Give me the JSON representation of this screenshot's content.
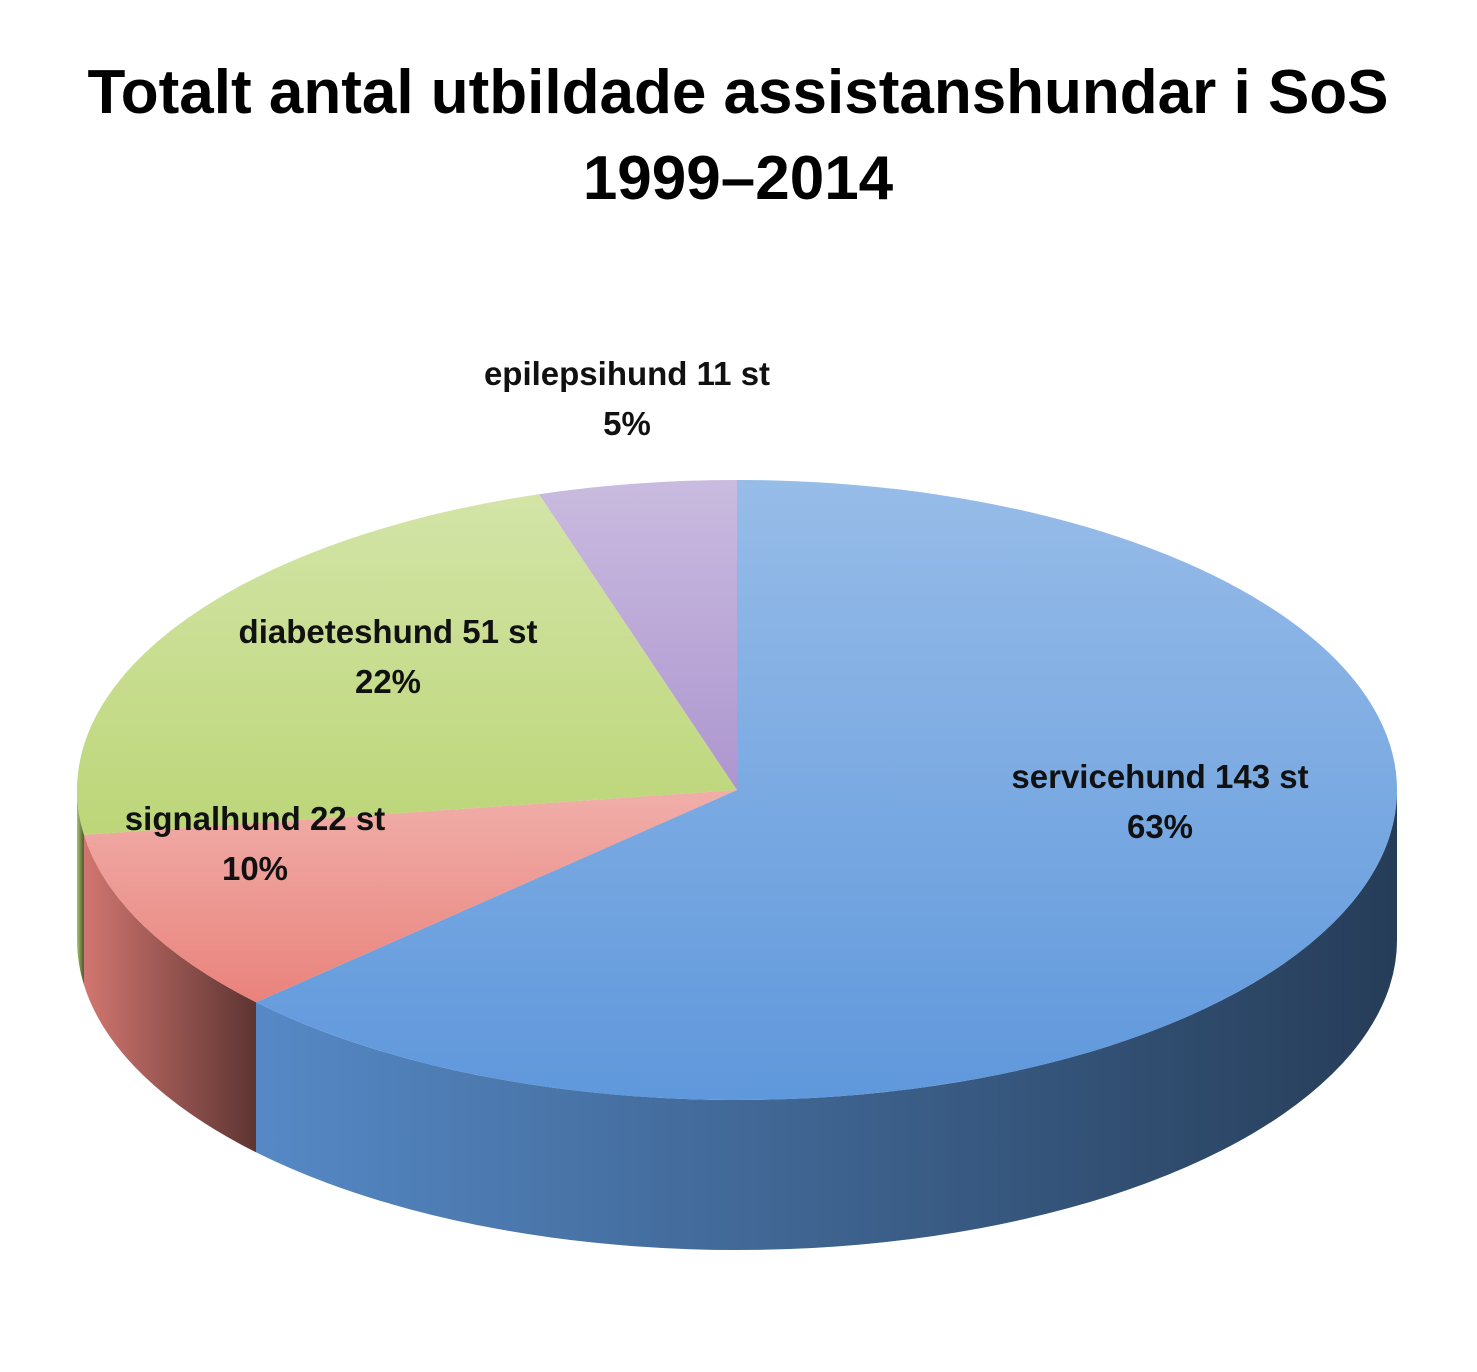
{
  "chart_data": {
    "type": "pie3d",
    "title": "Totalt antal utbildade assistanshundar i SoS 1999–2014",
    "categories": [
      "servicehund",
      "signalhund",
      "diabeteshund",
      "epilepsihund"
    ],
    "values": [
      143,
      22,
      51,
      11
    ],
    "value_labels": [
      "143 st",
      "22 st",
      "51 st",
      "11 st"
    ],
    "percents": [
      63,
      10,
      22,
      5
    ],
    "percent_labels": [
      "63%",
      "10%",
      "22%",
      "5%"
    ],
    "colors": [
      "#5f98dc",
      "#e9837c",
      "#bcd678",
      "#ad96cf"
    ]
  }
}
